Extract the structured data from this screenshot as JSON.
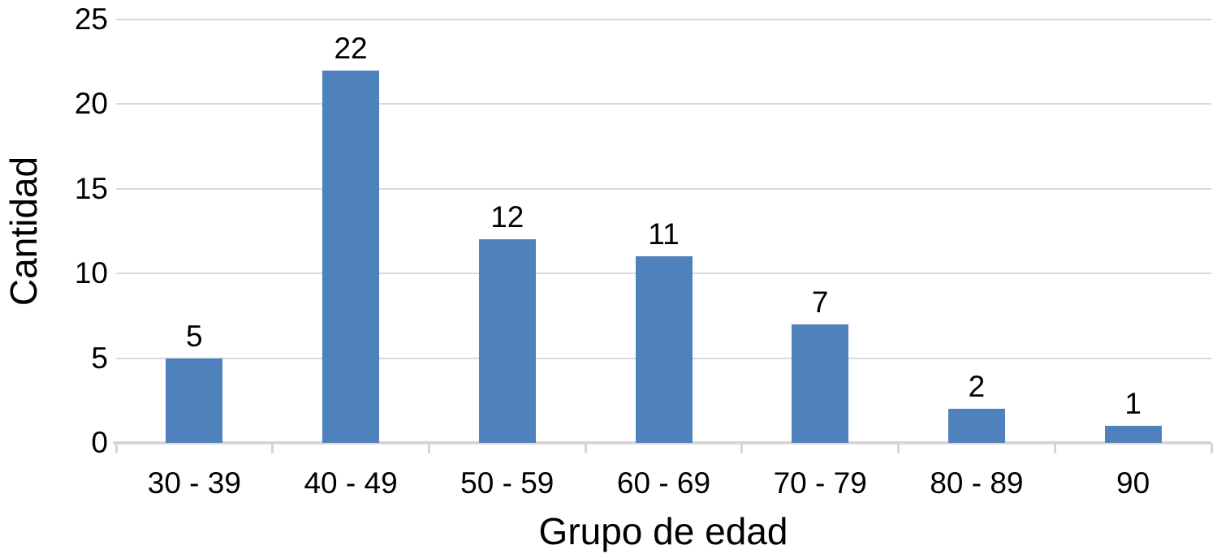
{
  "chart_data": {
    "type": "bar",
    "title": "",
    "xlabel": "Grupo de edad",
    "ylabel": "Cantidad",
    "categories": [
      "30 - 39",
      "40 - 49",
      "50 - 59",
      "60 - 69",
      "70 - 79",
      "80 - 89",
      "90"
    ],
    "values": [
      5,
      22,
      12,
      11,
      7,
      2,
      1
    ],
    "data_labels": [
      "5",
      "22",
      "12",
      "11",
      "7",
      "2",
      "1"
    ],
    "y_ticks": [
      0,
      5,
      10,
      15,
      20,
      25
    ],
    "ylim": [
      0,
      25
    ],
    "grid": "horizontal-only",
    "legend": "none",
    "colors": {
      "bar": "#4f81bd",
      "gridline": "#d9d9d9",
      "axis_line": "#d6d6d6",
      "text": "#000000",
      "background": "#ffffff"
    }
  }
}
